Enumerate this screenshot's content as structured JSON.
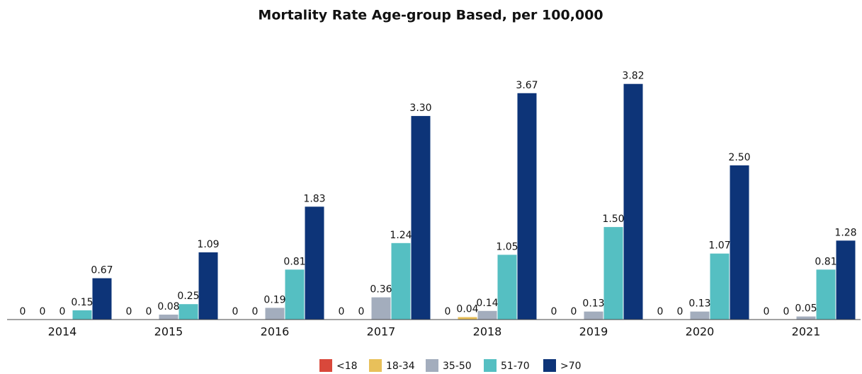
{
  "chart_data": {
    "type": "bar",
    "title": "Mortality Rate Age-group Based, per 100,000",
    "categories": [
      "2014",
      "2015",
      "2016",
      "2017",
      "2018",
      "2019",
      "2020",
      "2021"
    ],
    "ylim": [
      0,
      4
    ],
    "legend": "bottom",
    "series": [
      {
        "name": "<18",
        "color": "#d9483b",
        "values": [
          0,
          0,
          0,
          0,
          0,
          0,
          0,
          0
        ]
      },
      {
        "name": "18-34",
        "color": "#e8c05a",
        "values": [
          0,
          0,
          0,
          0,
          0.04,
          0,
          0,
          0
        ],
        "value_labels": [
          "0",
          "0",
          "0",
          "0",
          "0.04",
          "0",
          "0",
          "0"
        ]
      },
      {
        "name": "35-50",
        "color": "#a3adbd",
        "values": [
          0,
          0.08,
          0.19,
          0.36,
          0.14,
          0.13,
          0.13,
          0.05
        ],
        "value_labels": [
          "0",
          "0.08",
          "0.19",
          "0.36",
          "0.14",
          "0.13",
          "0.13",
          "0.05"
        ]
      },
      {
        "name": "51-70",
        "color": "#55bfc2",
        "values": [
          0.15,
          0.25,
          0.81,
          1.24,
          1.05,
          1.5,
          1.07,
          0.81
        ],
        "value_labels": [
          "0.15",
          "0.25",
          "0.81",
          "1.24",
          "1.05",
          "1.50",
          "1.07",
          "0.81"
        ]
      },
      {
        "name": ">70",
        "color": "#0d3478",
        "values": [
          0.67,
          1.09,
          1.83,
          3.3,
          3.67,
          3.82,
          2.5,
          1.28
        ],
        "value_labels": [
          "0.67",
          "1.09",
          "1.83",
          "3.30",
          "3.67",
          "3.82",
          "2.50",
          "1.28"
        ]
      }
    ]
  }
}
